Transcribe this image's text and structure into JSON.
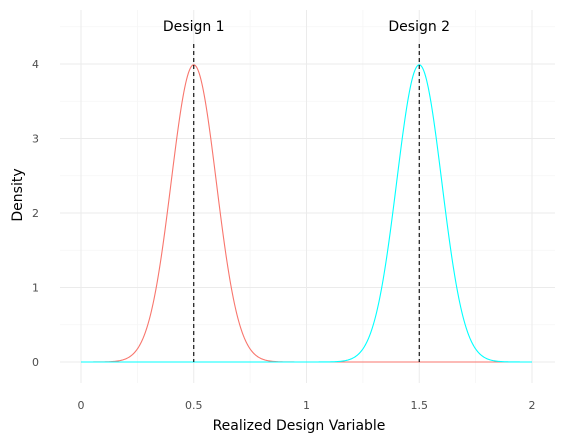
{
  "chart_data": {
    "type": "line",
    "title": "",
    "xlabel": "Realized Design Variable",
    "ylabel": "Density",
    "xlim": [
      0,
      2
    ],
    "ylim": [
      0,
      4
    ],
    "x_ticks": [
      "0",
      "0.5",
      "1",
      "1.5",
      "2"
    ],
    "y_ticks": [
      "0",
      "1",
      "2",
      "3",
      "4"
    ],
    "grid": true,
    "legend": "none",
    "series": [
      {
        "color": "#f8766d",
        "distribution": "normal",
        "mean": 0.5,
        "sd": 0.1,
        "x_range": [
          0,
          2
        ]
      },
      {
        "color": "#00ffff",
        "distribution": "normal",
        "mean": 1.5,
        "sd": 0.1,
        "x_range": [
          0,
          2
        ]
      }
    ],
    "annotations": [
      {
        "label": "Design 1",
        "x": 0.5
      },
      {
        "label": "Design 2",
        "x": 1.5
      }
    ],
    "reference_lines": [
      {
        "x": 0.5,
        "style": "dashed",
        "color": "#000000"
      },
      {
        "x": 1.5,
        "style": "dashed",
        "color": "#000000"
      }
    ]
  }
}
